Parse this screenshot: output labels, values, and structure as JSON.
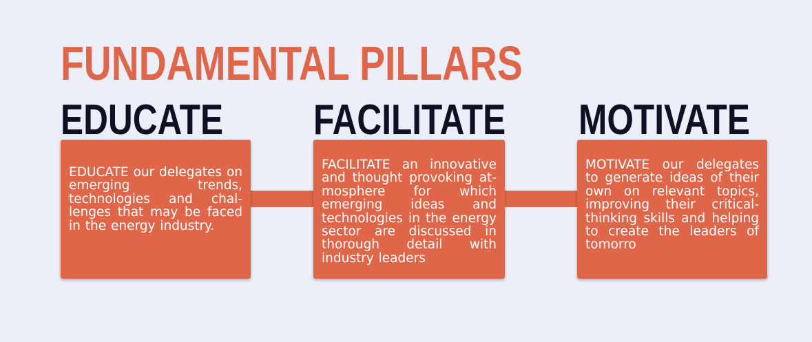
{
  "title": "FUNDAMENTAL PILLARS",
  "pillars": [
    {
      "heading": "EDUCATE",
      "text": "EDUCATE our delegates on emerging trends, technologies and chal­lenges that may be faced in the energy industry."
    },
    {
      "heading": "FACILITATE",
      "text": "FACILITATE an innovative and thought provoking at­mosphere for which emerg­ing ideas and technologies in the energy sector are discussed in thorough detail with industry leaders"
    },
    {
      "heading": "MOTIVATE",
      "text": "MOTIVATE our delegates to generate ideas of their own on relevant topics, im­proving their critical-think­ing skills and helping to create the leaders of to­morro"
    }
  ],
  "colors": {
    "background": "#eceef8",
    "accent": "#e0664a",
    "heading": "#0f1024",
    "box_text": "#ffffff"
  }
}
